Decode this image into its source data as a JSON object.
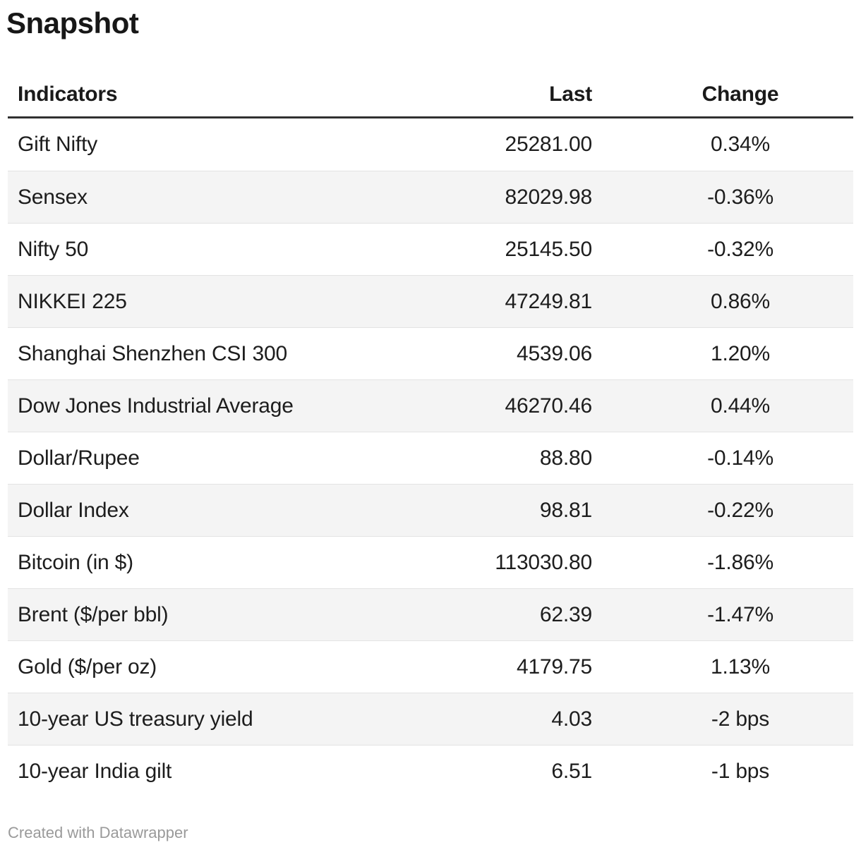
{
  "title": "Snapshot",
  "table": {
    "columns": [
      {
        "label": "Indicators"
      },
      {
        "label": "Last"
      },
      {
        "label": "Change"
      }
    ],
    "rows": [
      {
        "indicator": "Gift Nifty",
        "last": "25281.00",
        "change": "0.34%"
      },
      {
        "indicator": "Sensex",
        "last": "82029.98",
        "change": "-0.36%"
      },
      {
        "indicator": "Nifty 50",
        "last": "25145.50",
        "change": "-0.32%"
      },
      {
        "indicator": "NIKKEI 225",
        "last": "47249.81",
        "change": "0.86%"
      },
      {
        "indicator": "Shanghai Shenzhen CSI 300",
        "last": "4539.06",
        "change": "1.20%"
      },
      {
        "indicator": "Dow Jones Industrial Average",
        "last": "46270.46",
        "change": "0.44%"
      },
      {
        "indicator": "Dollar/Rupee",
        "last": "88.80",
        "change": "-0.14%"
      },
      {
        "indicator": "Dollar Index",
        "last": "98.81",
        "change": "-0.22%"
      },
      {
        "indicator": "Bitcoin (in $)",
        "last": "113030.80",
        "change": "-1.86%"
      },
      {
        "indicator": "Brent ($/per bbl)",
        "last": "62.39",
        "change": "-1.47%"
      },
      {
        "indicator": "Gold ($/per oz)",
        "last": "4179.75",
        "change": "1.13%"
      },
      {
        "indicator": "10-year US treasury yield",
        "last": "4.03",
        "change": "-2 bps"
      },
      {
        "indicator": "10-year India gilt",
        "last": "6.51",
        "change": "-1 bps"
      }
    ]
  },
  "footer": {
    "credit": "Created with Datawrapper"
  },
  "colors": {
    "text": "#1d1d1d",
    "title": "#171717",
    "stripe": "#f4f4f4",
    "header_rule": "#303030",
    "row_divider": "#e3e3e3",
    "credit": "#9a9a9a",
    "background": "#ffffff"
  },
  "chart_data": {
    "type": "table",
    "title": "Snapshot",
    "columns": [
      "Indicators",
      "Last",
      "Change"
    ],
    "rows": [
      [
        "Gift Nifty",
        25281.0,
        "0.34%"
      ],
      [
        "Sensex",
        82029.98,
        "-0.36%"
      ],
      [
        "Nifty 50",
        25145.5,
        "-0.32%"
      ],
      [
        "NIKKEI 225",
        47249.81,
        "0.86%"
      ],
      [
        "Shanghai Shenzhen CSI 300",
        4539.06,
        "1.20%"
      ],
      [
        "Dow Jones Industrial Average",
        46270.46,
        "0.44%"
      ],
      [
        "Dollar/Rupee",
        88.8,
        "-0.14%"
      ],
      [
        "Dollar Index",
        98.81,
        "-0.22%"
      ],
      [
        "Bitcoin (in $)",
        113030.8,
        "-1.86%"
      ],
      [
        "Brent ($/per bbl)",
        62.39,
        "-1.47%"
      ],
      [
        "Gold ($/per oz)",
        4179.75,
        "1.13%"
      ],
      [
        "10-year US treasury yield",
        4.03,
        "-2 bps"
      ],
      [
        "10-year India gilt",
        6.51,
        "-1 bps"
      ]
    ],
    "layout_hints": {
      "column_alignments": [
        "left",
        "right",
        "center"
      ],
      "zebra_striping": true,
      "striped_row_indices": [
        1,
        3,
        5,
        7,
        9,
        11
      ]
    }
  }
}
